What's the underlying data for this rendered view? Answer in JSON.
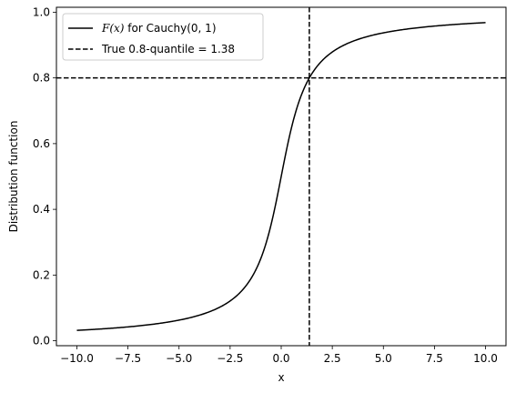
{
  "chart_data": {
    "type": "line",
    "xlabel": "x",
    "ylabel": "Distribution function",
    "xlim": [
      -11.0,
      11.0
    ],
    "ylim": [
      -0.015,
      1.015
    ],
    "xticks": [
      -10.0,
      -7.5,
      -5.0,
      -2.5,
      0.0,
      2.5,
      5.0,
      7.5,
      10.0
    ],
    "xtick_labels": [
      "−10.0",
      "−7.5",
      "−5.0",
      "−2.5",
      "0.0",
      "2.5",
      "5.0",
      "7.5",
      "10.0"
    ],
    "yticks": [
      0.0,
      0.2,
      0.4,
      0.6,
      0.8,
      1.0
    ],
    "ytick_labels": [
      "0.0",
      "0.2",
      "0.4",
      "0.6",
      "0.8",
      "1.0"
    ],
    "grid": false,
    "legend_position": "top-left",
    "series": [
      {
        "name_math": "F(x)",
        "name_rest": " for Cauchy(0, 1)",
        "style": "solid",
        "color": "#000000",
        "x": [
          -10,
          -9,
          -8,
          -7,
          -6,
          -5,
          -4,
          -3,
          -2.5,
          -2,
          -1.5,
          -1,
          -0.75,
          -0.5,
          -0.25,
          0,
          0.25,
          0.5,
          0.75,
          1,
          1.5,
          2,
          2.5,
          3,
          4,
          5,
          6,
          7,
          8,
          9,
          10
        ],
        "y": [
          0.0317,
          0.0351,
          0.0396,
          0.0452,
          0.0526,
          0.0628,
          0.078,
          0.1024,
          0.1211,
          0.1476,
          0.1872,
          0.25,
          0.2952,
          0.3524,
          0.422,
          0.5,
          0.578,
          0.6476,
          0.7048,
          0.75,
          0.8128,
          0.8524,
          0.8789,
          0.8976,
          0.922,
          0.9372,
          0.9474,
          0.9548,
          0.9604,
          0.9649,
          0.9683
        ]
      }
    ],
    "reference_lines": {
      "legend_label": "True 0.8-quantile = 1.38",
      "style": "dashed",
      "color": "#000000",
      "vertical_x": 1.376,
      "horizontal_y": 0.8
    }
  }
}
